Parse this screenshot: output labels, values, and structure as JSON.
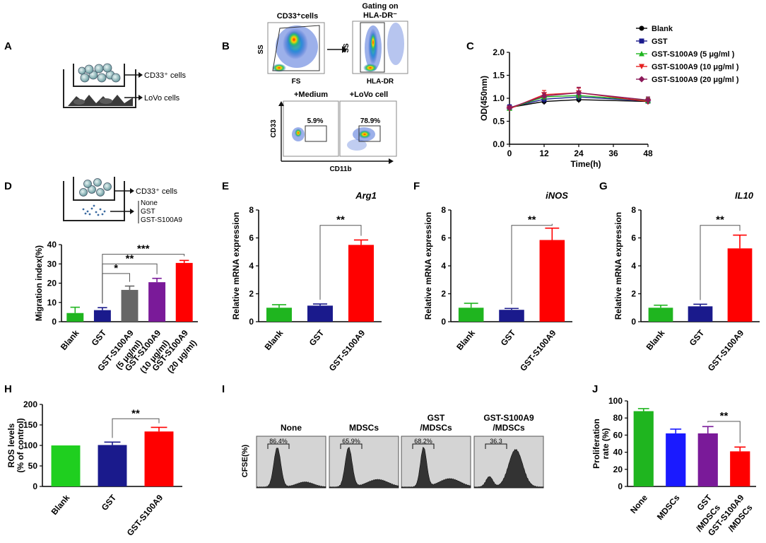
{
  "panels": {
    "A": {
      "letter": "A",
      "labels": [
        "CD33⁺ cells",
        "LoVo cells"
      ]
    },
    "B": {
      "letter": "B",
      "top_left": {
        "title": "CD33⁺cells",
        "xlabel": "FS",
        "ylabel": "SS"
      },
      "top_right": {
        "title_line1": "Gating on",
        "title_line2": "HLA-DR⁻",
        "xlabel": "HLA-DR",
        "ylabel": "SS"
      },
      "bottom": {
        "col1": "+Medium",
        "col2": "+LoVo cell",
        "pct1": "5.9%",
        "pct2": "78.9%",
        "xlabel": "CD11b",
        "ylabel": "CD33"
      }
    },
    "D_diagram": {
      "letter": "D",
      "label_top": "CD33⁺ cells",
      "label_lines": [
        "None",
        "GST",
        "GST-S100A9"
      ]
    },
    "I": {
      "letter": "I",
      "ylabel": "CFSE(%)",
      "histograms": [
        {
          "title_lines": [
            "None"
          ],
          "pct": "86.4%"
        },
        {
          "title_lines": [
            "MDSCs"
          ],
          "pct": "65.9%"
        },
        {
          "title_lines": [
            "GST",
            "/MDSCs"
          ],
          "pct": "68.2%"
        },
        {
          "title_lines": [
            "GST-S100A9",
            "/MDSCs"
          ],
          "pct": "36.3"
        }
      ]
    }
  },
  "chart_data": [
    {
      "id": "C",
      "letter": "C",
      "type": "line",
      "x": [
        0,
        12,
        24,
        48
      ],
      "xticks": [
        "0",
        "12",
        "24",
        "36",
        "48"
      ],
      "xlabel": "Time(h)",
      "ylabel": "OD(450nm)",
      "ylim": [
        0,
        2.0
      ],
      "yticks": [
        "0.0",
        "0.5",
        "1.0",
        "1.5",
        "2.0"
      ],
      "legend": "top-right",
      "series": [
        {
          "name": "Blank",
          "color": "#000000",
          "marker": "circle",
          "values": [
            0.8,
            0.93,
            0.97,
            0.93
          ],
          "errors": [
            0.05,
            0.07,
            0.07,
            0.05
          ]
        },
        {
          "name": "GST",
          "color": "#1a1a8c",
          "marker": "square",
          "values": [
            0.8,
            0.98,
            1.03,
            0.94
          ],
          "errors": [
            0.06,
            0.08,
            0.08,
            0.05
          ]
        },
        {
          "name": "GST-S100A9 (5 μg/ml )",
          "color": "#1fb51f",
          "marker": "triangle-up",
          "values": [
            0.78,
            1.03,
            1.06,
            0.95
          ],
          "errors": [
            0.05,
            0.08,
            0.09,
            0.06
          ]
        },
        {
          "name": "GST-S100A9 (10 μg/ml )",
          "color": "#e52121",
          "marker": "triangle-down",
          "values": [
            0.77,
            1.08,
            1.12,
            0.93
          ],
          "errors": [
            0.05,
            0.09,
            0.1,
            0.07
          ]
        },
        {
          "name": "GST-S100A9 (20 μg/ml )",
          "color": "#8c1a5a",
          "marker": "diamond",
          "values": [
            0.79,
            1.05,
            1.12,
            0.96
          ],
          "errors": [
            0.05,
            0.07,
            0.12,
            0.07
          ]
        }
      ]
    },
    {
      "id": "D",
      "letter": "",
      "type": "bar",
      "categories": [
        [
          "Blank"
        ],
        [
          "GST"
        ],
        [
          "GST-S100A9",
          "(5 μg/ml)"
        ],
        [
          "GST-S100A9",
          "(10 μg/ml)"
        ],
        [
          "GST-S100A9",
          "(20 μg/ml)"
        ]
      ],
      "values": [
        4.5,
        6,
        16.5,
        20.5,
        30.5
      ],
      "errors": [
        3,
        1.3,
        2,
        2,
        1.3
      ],
      "colors": [
        "#1fb51f",
        "#1a1a8c",
        "#666666",
        "#7a1a99",
        "#ff0000"
      ],
      "ylabel": "Migration index(%)",
      "ylim": [
        0,
        40
      ],
      "yticks": [
        "0",
        "10",
        "20",
        "30",
        "40"
      ],
      "significance": [
        {
          "from": 1,
          "to": 2,
          "label": "*"
        },
        {
          "from": 1,
          "to": 3,
          "label": "**"
        },
        {
          "from": 1,
          "to": 4,
          "label": "***"
        }
      ]
    },
    {
      "id": "E",
      "letter": "E",
      "type": "bar",
      "title": "Arg1",
      "categories": [
        [
          "Blank"
        ],
        [
          "GST"
        ],
        [
          "GST-S100A9"
        ]
      ],
      "values": [
        1.0,
        1.15,
        5.5
      ],
      "errors": [
        0.22,
        0.12,
        0.35
      ],
      "colors": [
        "#1fb51f",
        "#1a1a8c",
        "#ff0000"
      ],
      "ylabel": "Relative mRNA expression",
      "ylim": [
        0,
        8
      ],
      "yticks": [
        "0",
        "2",
        "4",
        "6",
        "8"
      ],
      "significance": [
        {
          "from": 1,
          "to": 2,
          "label": "**"
        }
      ]
    },
    {
      "id": "F",
      "letter": "F",
      "type": "bar",
      "title": "iNOS",
      "categories": [
        [
          "Blank"
        ],
        [
          "GST"
        ],
        [
          "GST-S100A9"
        ]
      ],
      "values": [
        1.0,
        0.85,
        5.85
      ],
      "errors": [
        0.32,
        0.1,
        0.85
      ],
      "colors": [
        "#1fb51f",
        "#1a1a8c",
        "#ff0000"
      ],
      "ylabel": "Relative mRNA expression",
      "ylim": [
        0,
        8
      ],
      "yticks": [
        "0",
        "2",
        "4",
        "6",
        "8"
      ],
      "significance": [
        {
          "from": 1,
          "to": 2,
          "label": "**"
        }
      ]
    },
    {
      "id": "G",
      "letter": "G",
      "type": "bar",
      "title": "IL10",
      "categories": [
        [
          "Blank"
        ],
        [
          "GST"
        ],
        [
          "GST-S100A9"
        ]
      ],
      "values": [
        1.0,
        1.1,
        5.25
      ],
      "errors": [
        0.18,
        0.15,
        0.95
      ],
      "colors": [
        "#1fb51f",
        "#1a1a8c",
        "#ff0000"
      ],
      "ylabel": "Relative mRNA expression",
      "ylim": [
        0,
        8
      ],
      "yticks": [
        "0",
        "2",
        "4",
        "6",
        "8"
      ],
      "significance": [
        {
          "from": 1,
          "to": 2,
          "label": "**"
        }
      ]
    },
    {
      "id": "H",
      "letter": "H",
      "type": "bar",
      "categories": [
        [
          "Blank"
        ],
        [
          "GST"
        ],
        [
          "GST-S100A9"
        ]
      ],
      "values": [
        100,
        101,
        134
      ],
      "errors": [
        0,
        7,
        10
      ],
      "colors": [
        "#1fcf1f",
        "#1a1a8c",
        "#ff0000"
      ],
      "ylabel": "ROS levels",
      "ylabel2": "(% of control)",
      "ylim": [
        0,
        200
      ],
      "yticks": [
        "0",
        "50",
        "100",
        "150",
        "200"
      ],
      "significance": [
        {
          "from": 1,
          "to": 2,
          "label": "**"
        }
      ]
    },
    {
      "id": "J",
      "letter": "J",
      "type": "bar",
      "categories": [
        [
          "None"
        ],
        [
          "MDSCs"
        ],
        [
          "GST",
          "/MDSCs"
        ],
        [
          "GST-S100A9",
          "/MDSCs"
        ]
      ],
      "values": [
        88,
        62,
        62,
        41
      ],
      "errors": [
        3,
        5,
        8,
        5
      ],
      "colors": [
        "#1fb51f",
        "#1a1aff",
        "#7a1a99",
        "#ff0000"
      ],
      "ylabel": "Proliferation",
      "ylabel2": "rate (%)",
      "ylim": [
        0,
        100
      ],
      "yticks": [
        "0",
        "20",
        "40",
        "60",
        "80",
        "100"
      ],
      "significance": [
        {
          "from": 2,
          "to": 3,
          "label": "**"
        }
      ]
    }
  ]
}
